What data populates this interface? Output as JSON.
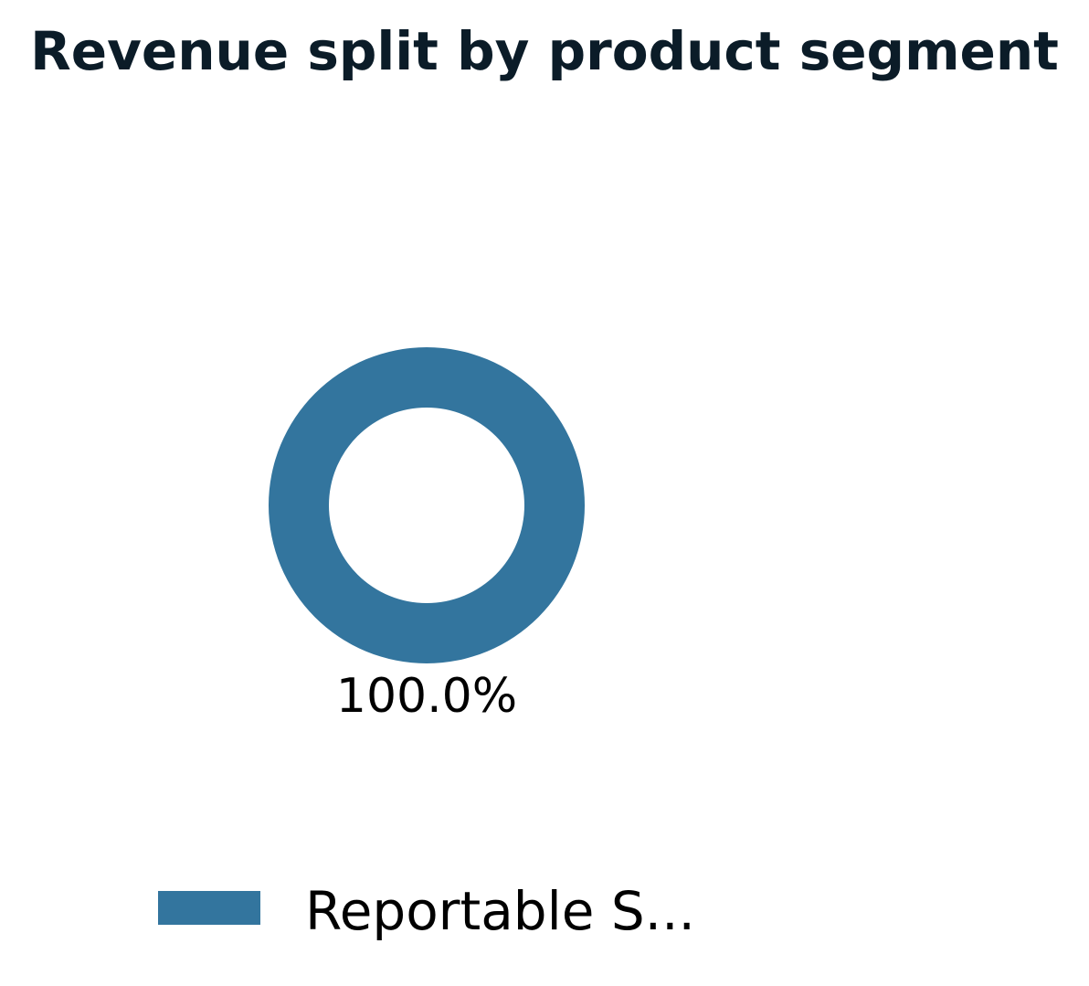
{
  "chart_data": {
    "type": "pie",
    "style": "donut",
    "title": "Revenue split by product segment",
    "slices": [
      {
        "label": "Reportable S...",
        "value": 100.0,
        "percent_label": "100.0%",
        "color": "#33759e"
      }
    ],
    "legend": {
      "placement": "bottom-center"
    }
  }
}
